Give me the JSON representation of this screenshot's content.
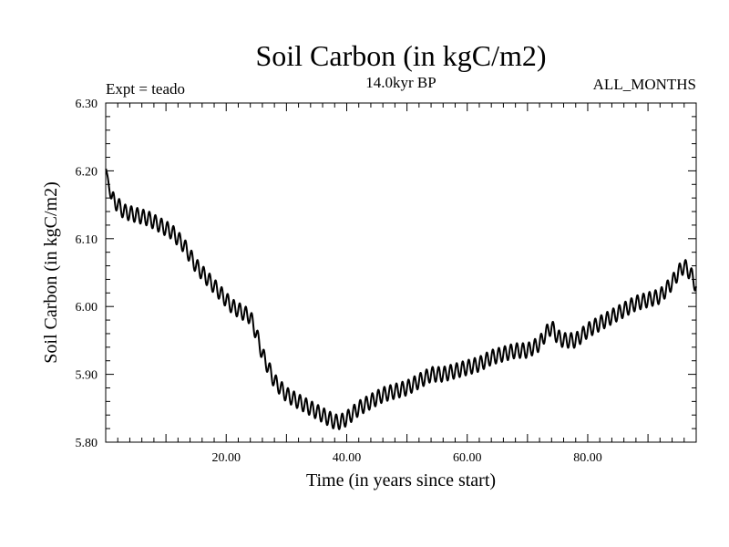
{
  "chart_data": {
    "type": "line",
    "title": "Soil Carbon (in kgC/m2)",
    "subtitle_left": "Expt = teado",
    "subtitle_center": "14.0kyr BP",
    "subtitle_right": "ALL_MONTHS",
    "xlabel": "Time (in years since start)",
    "ylabel": "Soil Carbon (in kgC/m2)",
    "xlim": [
      0,
      98
    ],
    "ylim": [
      5.8,
      6.3
    ],
    "xticks": [
      20,
      40,
      60,
      80
    ],
    "xtick_labels": [
      "20.00",
      "40.00",
      "60.00",
      "80.00"
    ],
    "yticks": [
      5.8,
      5.9,
      6.0,
      6.1,
      6.2,
      6.3
    ],
    "ytick_labels": [
      "5.80",
      "5.90",
      "6.00",
      "6.10",
      "6.20",
      "6.30"
    ],
    "grid": false,
    "seasonal_cycle_amplitude": 0.011,
    "seasonal_cycle_period_years": 1.0,
    "series": [
      {
        "name": "Soil Carbon",
        "x": [
          0,
          0.5,
          1,
          3,
          5,
          7,
          9,
          11,
          13,
          15,
          17,
          19,
          21,
          23,
          24,
          25,
          26,
          27,
          28,
          30,
          32,
          34,
          36,
          38,
          39,
          40,
          42,
          44,
          46,
          48,
          50,
          52,
          54,
          56,
          58,
          60,
          62,
          64,
          66,
          68,
          70,
          72,
          73,
          74,
          75,
          76,
          78,
          80,
          82,
          84,
          86,
          88,
          90,
          92,
          94,
          95,
          96,
          97,
          98
        ],
        "values": [
          6.205,
          6.18,
          6.16,
          6.14,
          6.135,
          6.13,
          6.12,
          6.11,
          6.09,
          6.06,
          6.04,
          6.02,
          6.0,
          5.99,
          5.985,
          5.96,
          5.93,
          5.91,
          5.89,
          5.87,
          5.86,
          5.85,
          5.84,
          5.83,
          5.83,
          5.835,
          5.85,
          5.86,
          5.87,
          5.875,
          5.88,
          5.89,
          5.9,
          5.9,
          5.905,
          5.91,
          5.915,
          5.925,
          5.93,
          5.935,
          5.935,
          5.945,
          5.96,
          5.97,
          5.955,
          5.95,
          5.95,
          5.965,
          5.975,
          5.985,
          5.995,
          6.005,
          6.01,
          6.015,
          6.035,
          6.05,
          6.06,
          6.05,
          6.03
        ]
      }
    ]
  }
}
